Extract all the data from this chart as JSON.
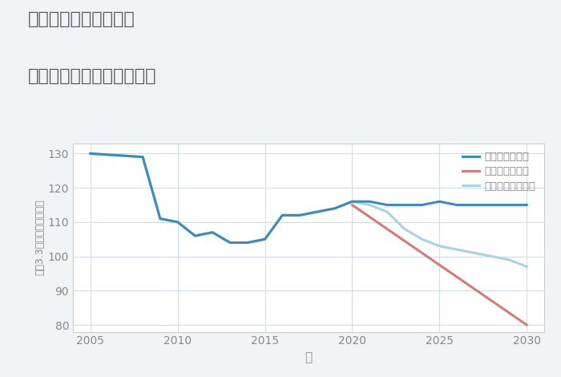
{
  "title_line1": "奈良県橿原市地黄町の",
  "title_line2": "中古マンションの価格推移",
  "xlabel": "年",
  "ylabel": "坪（3.3㎡）単価（万円）",
  "background_color": "#f0f4f7",
  "plot_bg_color": "#ffffff",
  "good_scenario": {
    "label": "グッドシナリオ",
    "color": "#3a8bbf",
    "x": [
      2005,
      2008,
      2009,
      2010,
      2011,
      2012,
      2013,
      2014,
      2015,
      2016,
      2017,
      2018,
      2019,
      2020,
      2021,
      2022,
      2023,
      2024,
      2025,
      2026,
      2027,
      2028,
      2029,
      2030
    ],
    "y": [
      130,
      129,
      111,
      110,
      106,
      107,
      104,
      104,
      105,
      112,
      112,
      113,
      114,
      116,
      116,
      115,
      115,
      115,
      116,
      115,
      115,
      115,
      115,
      115
    ]
  },
  "bad_scenario": {
    "label": "バッドシナリオ",
    "color": "#d87878",
    "x": [
      2020,
      2030
    ],
    "y": [
      115,
      80
    ]
  },
  "normal_scenario": {
    "label": "ノーマルシナリオ",
    "color": "#a8d4e6",
    "x": [
      2005,
      2008,
      2009,
      2010,
      2011,
      2012,
      2013,
      2014,
      2015,
      2016,
      2017,
      2018,
      2019,
      2020,
      2021,
      2022,
      2023,
      2024,
      2025,
      2026,
      2027,
      2028,
      2029,
      2030
    ],
    "y": [
      130,
      129,
      111,
      110,
      106,
      107,
      104,
      104,
      105,
      112,
      112,
      113,
      114,
      116,
      115,
      113,
      108,
      105,
      103,
      102,
      101,
      100,
      99,
      97
    ]
  },
  "ylim": [
    78,
    133
  ],
  "yticks": [
    80,
    90,
    100,
    110,
    120,
    130
  ],
  "xlim": [
    2004,
    2031
  ],
  "xticks": [
    2005,
    2010,
    2015,
    2020,
    2025,
    2030
  ],
  "title_color": "#555555",
  "axis_color": "#cccccc",
  "grid_color": "#d0dde8",
  "tick_color": "#888888"
}
